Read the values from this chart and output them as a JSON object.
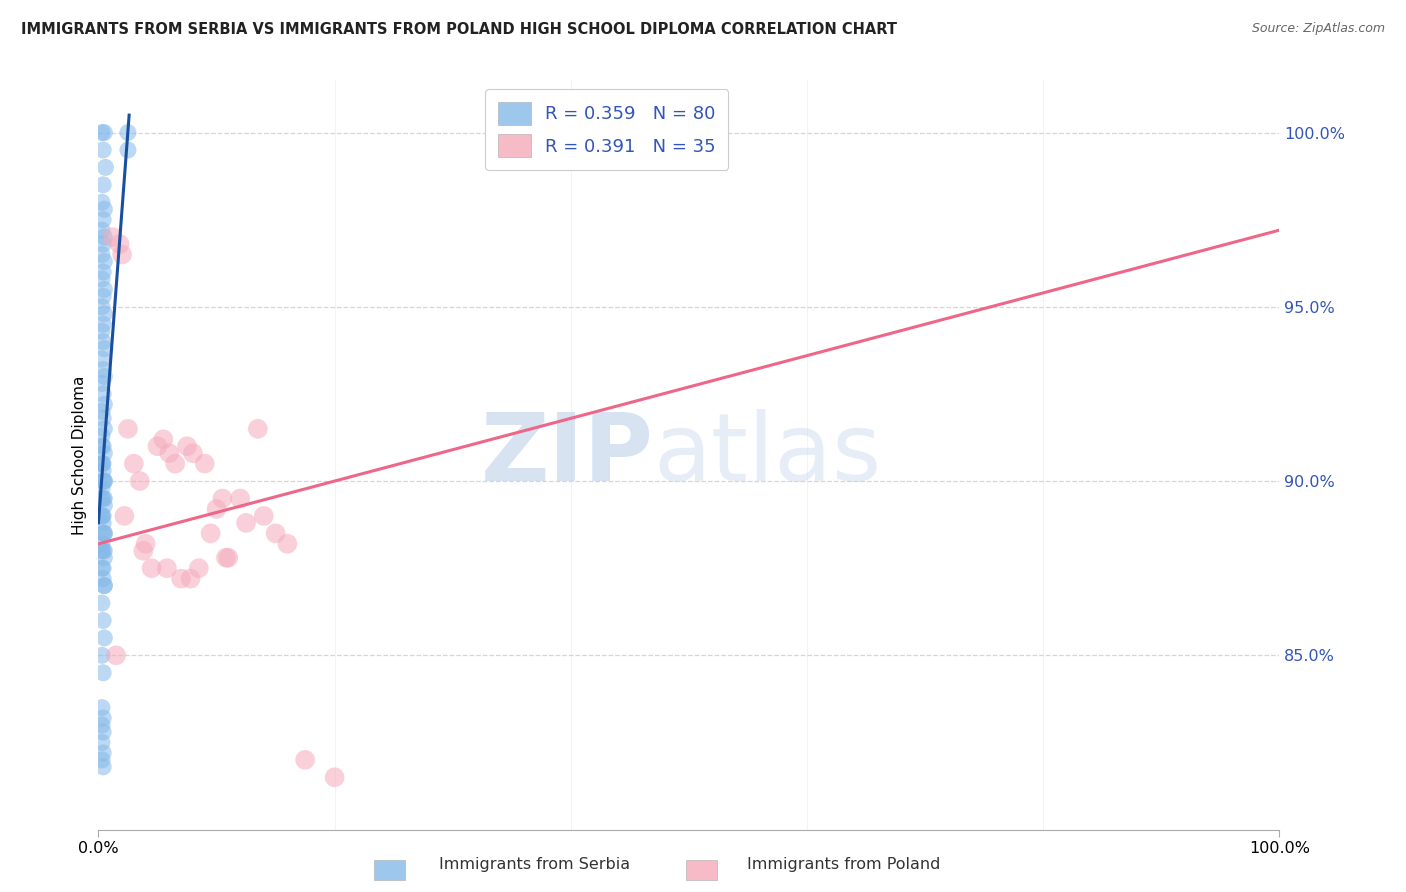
{
  "title": "IMMIGRANTS FROM SERBIA VS IMMIGRANTS FROM POLAND HIGH SCHOOL DIPLOMA CORRELATION CHART",
  "source": "Source: ZipAtlas.com",
  "ylabel": "High School Diploma",
  "watermark_zip": "ZIP",
  "watermark_atlas": "atlas",
  "legend_r1": "R = 0.359",
  "legend_n1": "N = 80",
  "legend_r2": "R = 0.391",
  "legend_n2": "N = 35",
  "serbia_color": "#85b9e8",
  "poland_color": "#f5aabb",
  "serbia_line_color": "#1a4fa0",
  "poland_line_color": "#ee6688",
  "serbia_scatter_x": [
    0.3,
    0.5,
    0.4,
    0.6,
    0.4,
    0.3,
    0.5,
    0.4,
    0.3,
    0.5,
    0.4,
    0.3,
    0.5,
    0.4,
    0.3,
    0.5,
    0.4,
    0.3,
    0.5,
    0.4,
    0.3,
    0.4,
    0.5,
    0.3,
    0.4,
    0.5,
    0.3,
    0.4,
    0.5,
    0.3,
    0.4,
    0.5,
    0.3,
    0.4,
    0.5,
    0.3,
    0.4,
    0.5,
    0.3,
    0.4,
    0.5,
    0.3,
    0.4,
    0.5,
    0.3,
    0.4,
    0.5,
    0.3,
    0.4,
    0.5,
    0.3,
    0.4,
    0.5,
    0.3,
    0.4,
    0.5,
    0.3,
    0.4,
    0.5,
    0.3,
    0.4,
    0.5,
    0.3,
    0.4,
    0.5,
    0.3,
    0.4,
    0.5,
    0.3,
    0.4,
    2.5,
    2.5,
    0.3,
    0.4,
    0.3,
    0.4,
    0.3,
    0.4,
    0.3,
    0.4
  ],
  "serbia_scatter_y": [
    100.0,
    100.0,
    99.5,
    99.0,
    98.5,
    98.0,
    97.8,
    97.5,
    97.2,
    97.0,
    96.8,
    96.5,
    96.3,
    96.0,
    95.8,
    95.5,
    95.3,
    95.0,
    94.8,
    94.5,
    94.3,
    94.0,
    93.8,
    93.5,
    93.2,
    93.0,
    92.8,
    92.5,
    92.2,
    92.0,
    91.8,
    91.5,
    91.3,
    91.0,
    90.8,
    90.5,
    90.3,
    90.0,
    89.8,
    89.5,
    89.3,
    89.0,
    88.8,
    88.5,
    88.2,
    88.0,
    87.8,
    87.5,
    87.2,
    87.0,
    90.5,
    90.0,
    89.5,
    89.0,
    88.5,
    88.0,
    91.0,
    90.5,
    90.0,
    89.5,
    89.0,
    88.5,
    88.0,
    87.5,
    87.0,
    86.5,
    86.0,
    85.5,
    85.0,
    84.5,
    100.0,
    99.5,
    83.5,
    83.2,
    83.0,
    82.8,
    82.5,
    82.2,
    82.0,
    81.8
  ],
  "poland_scatter_x": [
    1.5,
    1.8,
    2.0,
    2.5,
    3.0,
    3.5,
    4.0,
    4.5,
    5.0,
    5.5,
    6.0,
    6.5,
    7.0,
    7.5,
    8.0,
    8.5,
    9.0,
    9.5,
    10.0,
    10.5,
    11.0,
    12.0,
    12.5,
    13.5,
    14.0,
    15.0,
    16.0,
    17.5,
    20.0,
    1.2,
    2.2,
    3.8,
    5.8,
    7.8,
    10.8
  ],
  "poland_scatter_y": [
    85.0,
    96.8,
    96.5,
    91.5,
    90.5,
    90.0,
    88.2,
    87.5,
    91.0,
    91.2,
    90.8,
    90.5,
    87.2,
    91.0,
    90.8,
    87.5,
    90.5,
    88.5,
    89.2,
    89.5,
    87.8,
    89.5,
    88.8,
    91.5,
    89.0,
    88.5,
    88.2,
    82.0,
    81.5,
    97.0,
    89.0,
    88.0,
    87.5,
    87.2,
    87.8
  ],
  "xlim": [
    0,
    100
  ],
  "ylim": [
    80,
    101.5
  ],
  "yticks": [
    85,
    90,
    95,
    100
  ],
  "ytick_labels": [
    "85.0%",
    "90.0%",
    "95.0%",
    "100.0%"
  ],
  "grid_color": "#cccccc",
  "background_color": "#ffffff",
  "serbia_trendline_x": [
    0,
    2.6
  ],
  "serbia_trendline_y": [
    88.8,
    100.5
  ],
  "poland_trendline_x": [
    0,
    100
  ],
  "poland_trendline_y": [
    88.2,
    97.2
  ]
}
